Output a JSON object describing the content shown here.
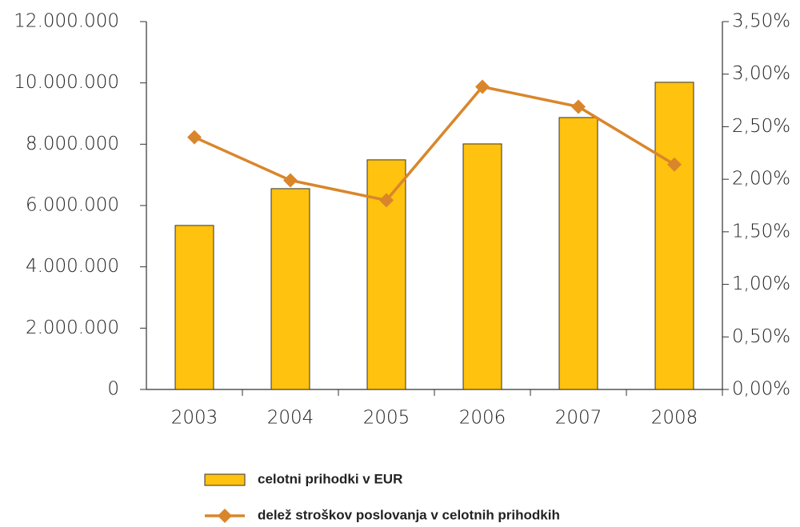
{
  "chart_data": {
    "type": "bar_line",
    "categories": [
      "2003",
      "2004",
      "2005",
      "2006",
      "2007",
      "2008"
    ],
    "series": [
      {
        "name": "celotni prihodki v EUR",
        "type": "bar",
        "color": "#FFC20E",
        "values": [
          5350000,
          6550000,
          7490000,
          8010000,
          8870000,
          10020000
        ]
      },
      {
        "name": "delež stroškov poslovanja v celotnih prihodkih",
        "type": "line",
        "axis": "y2",
        "color": "#D9862B",
        "values": [
          2.4,
          1.99,
          1.8,
          2.88,
          2.69,
          2.14
        ]
      }
    ],
    "ylim": [
      0,
      12000000
    ],
    "yticks": [
      0,
      {
        "value": 2000000,
        "label": "2.000.000"
      },
      {
        "value": 4000000,
        "label": "4.000.000"
      },
      {
        "value": 6000000,
        "label": "6.000.000"
      },
      {
        "value": 8000000,
        "label": "8.000.000"
      },
      {
        "value": 10000000,
        "label": "10.000.000"
      },
      {
        "value": 12000000,
        "label": "12.000.000"
      }
    ],
    "y2lim": [
      0,
      3.5
    ],
    "y2ticks": [
      {
        "value": 0,
        "label": "0,00%"
      },
      {
        "value": 0.5,
        "label": "0,50%"
      },
      {
        "value": 1,
        "label": "1,00%"
      },
      {
        "value": 1.5,
        "label": "1,50%"
      },
      {
        "value": 2,
        "label": "2,00%"
      },
      {
        "value": 2.5,
        "label": "2,50%"
      },
      {
        "value": 3,
        "label": "3,00%"
      },
      {
        "value": 3.5,
        "label": "3,50%"
      }
    ],
    "grid": false
  }
}
